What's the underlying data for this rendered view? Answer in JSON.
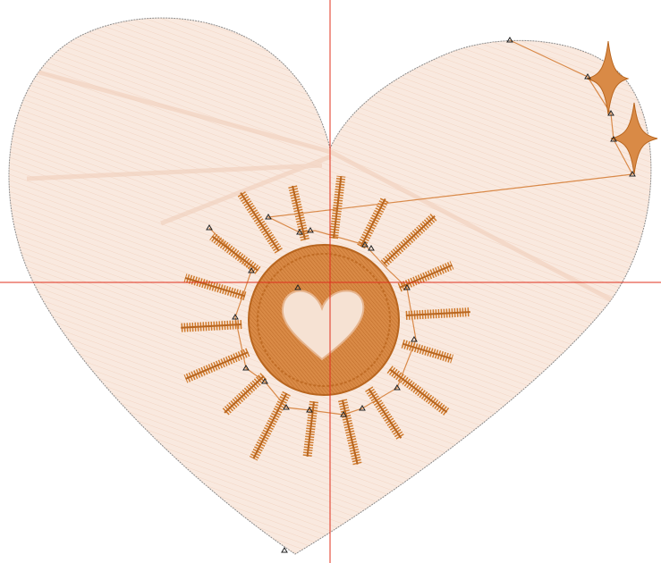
{
  "canvas": {
    "background": "#ffffff",
    "heart_fill": "#f9e9df",
    "heart_stitch": "#f2d3c0",
    "heart_outline": "#8a8a8a",
    "motif_color": "#cf7a2c",
    "motif_dark": "#b9661f",
    "path_line": "#d98a4a",
    "crosshair_color": "#e0301e",
    "marker_color": "#222222"
  },
  "design": {
    "heart": "heart-shape",
    "sun": "sun-motif",
    "center_heart": "small-heart",
    "sparkles": [
      "four-point-star",
      "four-point-star"
    ],
    "rays": 18
  }
}
